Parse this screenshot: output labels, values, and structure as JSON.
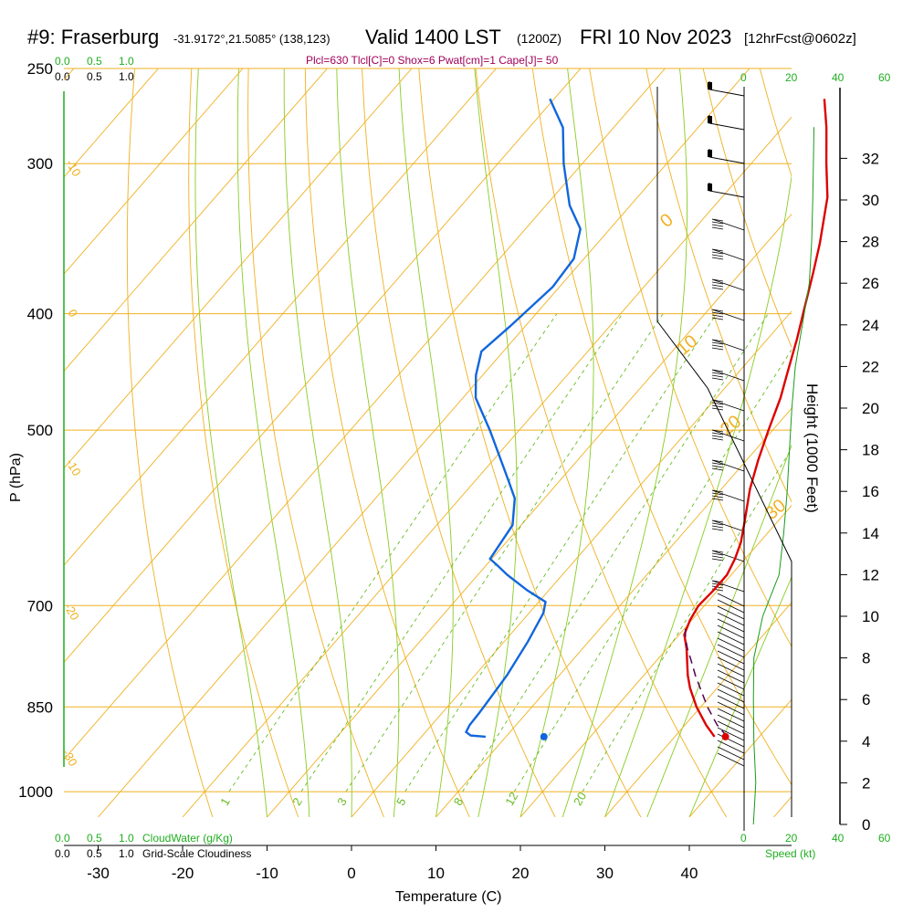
{
  "header": {
    "title_left": "#9: Fraserburg",
    "coords": "-31.9172°,21.5085° (138,123)",
    "valid": "Valid 1400 LST",
    "zulu": "(1200Z)",
    "date": "FRI 10 Nov 2023",
    "forecast": "[12hrFcst@0602z]",
    "indices": "Plcl=630 Tlcl[C]=0 Shox=6 Pwat[cm]=1 Cape[J]= 50"
  },
  "cloud_scale": {
    "cloudwater_ticks": [
      "0.0",
      "0.5",
      "1.0"
    ],
    "cloudiness_ticks": [
      "0.0",
      "0.5",
      "1.0"
    ],
    "cloudwater_label": "CloudWater (g/Kg)",
    "cloudiness_label": "Grid-Scale Cloudiness"
  },
  "speed_scale": {
    "ticks": [
      "0",
      "20",
      "40",
      "60"
    ],
    "label": "Speed (kt)"
  },
  "colors": {
    "isobar": "#f0b020",
    "dry_adiabat": "#f0b020",
    "moist_adiabat": "#88cc22",
    "mixing_ratio": "#66bb22",
    "temperature": "#dd0000",
    "dewpoint": "#1166dd",
    "parcel": "#550055",
    "speed": "#1a9a1a"
  },
  "chart_data": {
    "type": "line",
    "subtype": "skew-T log-P",
    "xlabel": "Temperature (C)",
    "ylabel": "P (hPa)",
    "y2label": "Height (1000 Feet)",
    "x_ticks": [
      -30,
      -20,
      -10,
      0,
      10,
      20,
      30,
      40
    ],
    "pressure_ticks": [
      250,
      300,
      400,
      500,
      700,
      850,
      1000
    ],
    "height_ticks": [
      0,
      2,
      4,
      6,
      8,
      10,
      12,
      14,
      16,
      18,
      20,
      22,
      24,
      26,
      28,
      30,
      32
    ],
    "xlim": [
      -35,
      47
    ],
    "ylim_hpa": [
      1050,
      250
    ],
    "dry_adiabat_labels": [
      "-10",
      "0",
      "-10",
      "-20",
      "-30",
      "0",
      "10",
      "20",
      "30"
    ],
    "mixing_ratio_labels": [
      "1",
      "2",
      "3",
      "5",
      "8",
      "12",
      "20"
    ],
    "series": [
      {
        "name": "Temperature",
        "points": [
          [
            900,
            34.7
          ],
          [
            880,
            32.5
          ],
          [
            850,
            29.5
          ],
          [
            820,
            26.8
          ],
          [
            800,
            25.2
          ],
          [
            760,
            22.3
          ],
          [
            740,
            20.6
          ],
          [
            720,
            19.8
          ],
          [
            700,
            19.3
          ],
          [
            680,
            19.5
          ],
          [
            660,
            19.5
          ],
          [
            640,
            18.8
          ],
          [
            620,
            17.8
          ],
          [
            600,
            16.4
          ],
          [
            560,
            13.4
          ],
          [
            530,
            11.4
          ],
          [
            500,
            9.5
          ],
          [
            470,
            7.6
          ],
          [
            450,
            6.0
          ],
          [
            420,
            3.5
          ],
          [
            400,
            1.6
          ],
          [
            370,
            -1.4
          ],
          [
            350,
            -3.6
          ],
          [
            320,
            -7.5
          ],
          [
            300,
            -11.1
          ],
          [
            280,
            -14.8
          ],
          [
            265,
            -18.0
          ]
        ]
      },
      {
        "name": "Dewpoint",
        "points": [
          [
            900,
            7.6
          ],
          [
            898,
            5.7
          ],
          [
            892,
            4.8
          ],
          [
            880,
            4.5
          ],
          [
            860,
            4.4
          ],
          [
            850,
            4.3
          ],
          [
            800,
            3.8
          ],
          [
            750,
            2.8
          ],
          [
            710,
            1.7
          ],
          [
            695,
            0.8
          ],
          [
            680,
            -2.5
          ],
          [
            660,
            -6.5
          ],
          [
            650,
            -8.3
          ],
          [
            640,
            -10.2
          ],
          [
            600,
            -11.0
          ],
          [
            570,
            -13.5
          ],
          [
            550,
            -16.2
          ],
          [
            500,
            -23.5
          ],
          [
            470,
            -28.5
          ],
          [
            450,
            -30.8
          ],
          [
            430,
            -32.6
          ],
          [
            410,
            -31.8
          ],
          [
            380,
            -30.8
          ],
          [
            360,
            -31.2
          ],
          [
            340,
            -33.5
          ],
          [
            325,
            -37.2
          ],
          [
            300,
            -42.2
          ],
          [
            280,
            -46.0
          ],
          [
            265,
            -50.5
          ]
        ]
      },
      {
        "name": "Parcel",
        "points": [
          [
            900,
            36.2
          ],
          [
            880,
            33.8
          ],
          [
            850,
            30.8
          ],
          [
            820,
            28.0
          ],
          [
            800,
            26.1
          ],
          [
            780,
            24.3
          ],
          [
            760,
            22.4
          ],
          [
            745,
            21.1
          ],
          [
            730,
            20.0
          ]
        ]
      }
    ],
    "surface_points": [
      {
        "series": "Temperature",
        "pressure": 900,
        "temp": 36.0
      },
      {
        "series": "Dewpoint",
        "pressure": 900,
        "temp": 14.5
      }
    ],
    "wind_speed_profile": [
      [
        0,
        4.0
      ],
      [
        2,
        5.0
      ],
      [
        4,
        4.2
      ],
      [
        6,
        4.0
      ],
      [
        8,
        4.2
      ],
      [
        10,
        8.0
      ],
      [
        12,
        15.0
      ],
      [
        14,
        17.0
      ],
      [
        16,
        18.5
      ],
      [
        18,
        19.5
      ],
      [
        20,
        20.5
      ],
      [
        22,
        22.0
      ],
      [
        24,
        25.0
      ],
      [
        26,
        28.0
      ],
      [
        28,
        29.0
      ],
      [
        30,
        29.5
      ],
      [
        32,
        29.8
      ],
      [
        33.5,
        30.0
      ]
    ]
  }
}
